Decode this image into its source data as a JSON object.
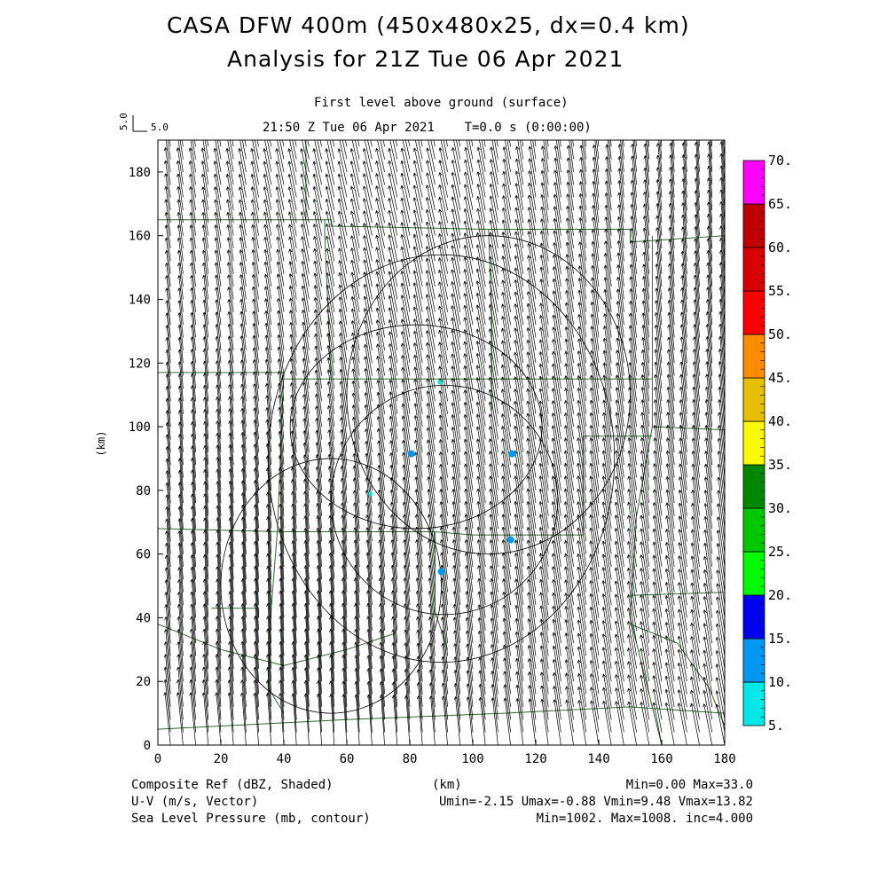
{
  "header": {
    "title_line1": "CASA DFW 400m (450x480x25, dx=0.4 km)",
    "title_line2": "Analysis for 21Z Tue 06 Apr 2021",
    "level_label": "First level above ground (surface)",
    "time_label": "21:50 Z Tue 06 Apr 2021    T=0.0 s (0:00:00)",
    "ref_vector_value": "5.0",
    "ref_vector_label": "5.0"
  },
  "footer": {
    "field1_name": "Composite Ref (dBZ, Shaded)",
    "field1_stats": "Min=0.00 Max=33.0",
    "field2_name": "U-V (m/s, Vector)",
    "field2_stats": "Umin=-2.15 Umax=-0.88 Vmin=9.48 Vmax=13.82",
    "field3_name": "Sea Level Pressure (mb, contour)",
    "field3_stats": "Min=1002. Max=1008. inc=4.000"
  },
  "chart_data": {
    "type": "heatmap",
    "xlabel": "(km)",
    "ylabel": "(km)",
    "xlim": [
      0,
      180
    ],
    "ylim": [
      0,
      190
    ],
    "xticks": [
      0,
      20,
      40,
      60,
      80,
      100,
      120,
      140,
      160,
      180
    ],
    "yticks": [
      0,
      20,
      40,
      60,
      80,
      100,
      120,
      140,
      160,
      180
    ],
    "colorbar": {
      "levels": [
        "5.",
        "10.",
        "15.",
        "20.",
        "25.",
        "30.",
        "35.",
        "40.",
        "45.",
        "50.",
        "55.",
        "60.",
        "65.",
        "70."
      ],
      "colors": [
        "#00e8e8",
        "#0098f0",
        "#0000f0",
        "#00fa00",
        "#00c800",
        "#008800",
        "#fafa00",
        "#e6c000",
        "#ff8c00",
        "#ff0000",
        "#d80000",
        "#c00000",
        "#ff00ff"
      ]
    },
    "reflectivity_echoes": [
      {
        "x": 80.5,
        "y": 91.5,
        "dbz": 12,
        "color": "#0098f0"
      },
      {
        "x": 112.5,
        "y": 91.5,
        "dbz": 12,
        "color": "#0098f0"
      },
      {
        "x": 112,
        "y": 64.5,
        "dbz": 10,
        "color": "#0098f0"
      },
      {
        "x": 90,
        "y": 54.5,
        "dbz": 10,
        "color": "#0098f0"
      },
      {
        "x": 67.5,
        "y": 79,
        "dbz": 7,
        "color": "#00e8e8"
      },
      {
        "x": 89.5,
        "y": 114,
        "dbz": 6,
        "color": "#00e8e8"
      }
    ],
    "wind": {
      "u_min": -2.15,
      "u_max": -0.88,
      "v_min": 9.48,
      "v_max": 13.82,
      "spacing_km": 4,
      "ref_speed": 5.0
    },
    "pressure_contours": {
      "min": 1002,
      "max": 1008,
      "inc": 4.0
    },
    "colors": {
      "vectors": "#000000",
      "county_lines": "#2e6b2e",
      "contours": "#000000"
    }
  }
}
